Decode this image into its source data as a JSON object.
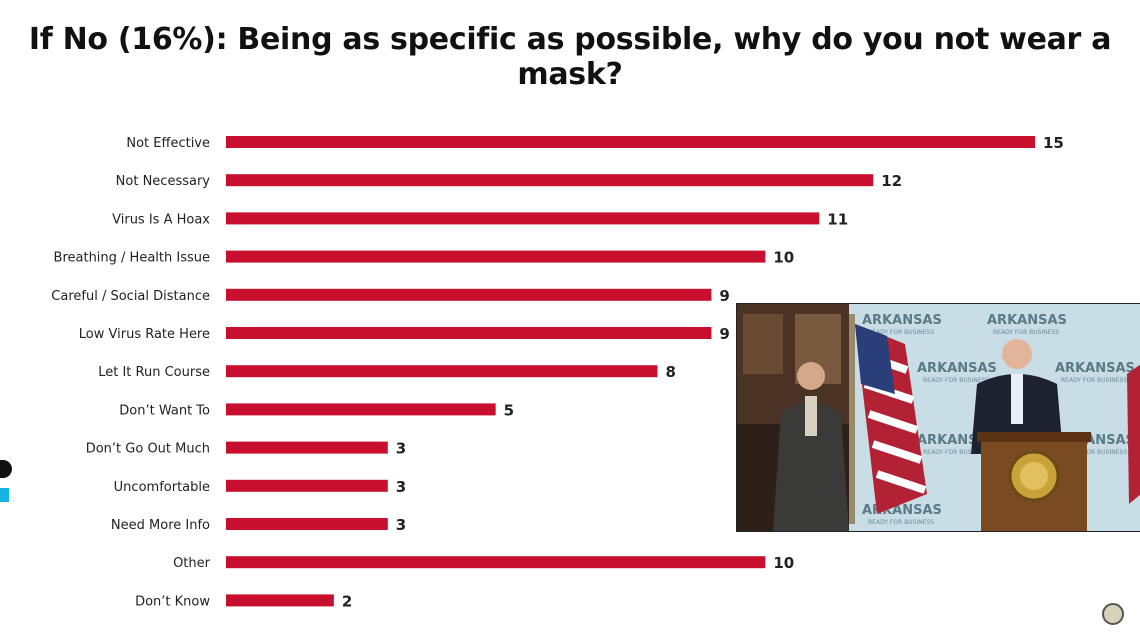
{
  "chart_data": {
    "type": "bar",
    "orientation": "horizontal",
    "title": "If No (16%): Being as specific as possible, why do you not wear a mask?",
    "categories": [
      "Not Effective",
      "Not Necessary",
      "Virus Is A Hoax",
      "Breathing / Health Issue",
      "Careful / Social Distance",
      "Low Virus Rate Here",
      "Let It Run Course",
      "Don’t Want To",
      "Don’t Go Out Much",
      "Uncomfortable",
      "Need More Info",
      "Other",
      "Don’t Know"
    ],
    "values": [
      15,
      12,
      11,
      10,
      9,
      9,
      8,
      5,
      3,
      3,
      3,
      10,
      2
    ],
    "xlim": [
      0,
      15
    ],
    "bar_color": "#c8102e",
    "grid": false,
    "legend": "none"
  },
  "video_overlay": {
    "backdrop_text": [
      "ARKANSAS",
      "ARKANSAS",
      "ARKANSAS",
      "ARKANSAS",
      "ARKANSAS"
    ],
    "backdrop_subtext": "READY FOR BUSINESS"
  },
  "icons": {
    "bottom_right": "seal-icon",
    "left_edge": "help-icon"
  }
}
